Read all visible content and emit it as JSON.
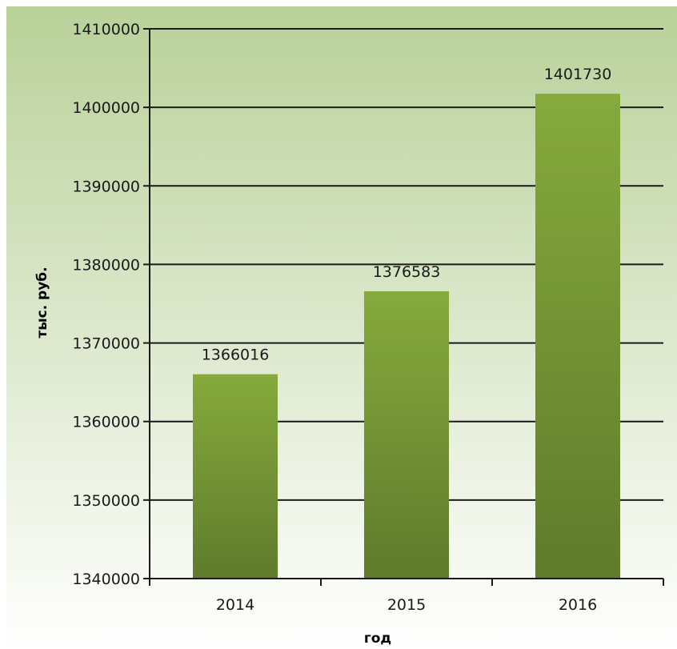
{
  "chart_data": {
    "type": "bar",
    "title": "",
    "xlabel": "год",
    "ylabel": "тыс. руб.",
    "categories": [
      "2014",
      "2015",
      "2016"
    ],
    "values": [
      1366016,
      1376583,
      1401730
    ],
    "data_labels": [
      "1366016",
      "1376583",
      "1401730"
    ],
    "ylim": [
      1340000,
      1410000
    ],
    "yticks": [
      1340000,
      1350000,
      1360000,
      1370000,
      1380000,
      1390000,
      1400000,
      1410000
    ],
    "ytick_labels": [
      "1340000",
      "1350000",
      "1360000",
      "1370000",
      "1380000",
      "1390000",
      "1400000",
      "1410000"
    ],
    "grid": true,
    "legend": "none",
    "colors": {
      "background_top": "#b9d199",
      "background_bottom": "#ffffff",
      "bar_top": "#86aa3c",
      "bar_bottom": "#5f7b2c",
      "grid": "#1a1a1a"
    }
  }
}
